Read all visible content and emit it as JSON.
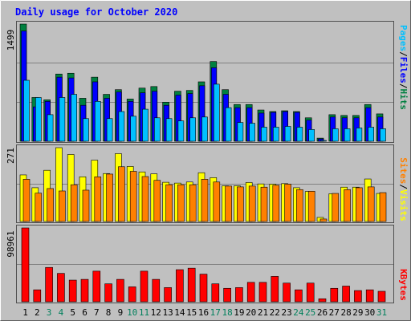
{
  "title": "Daily usage for October 2020",
  "colors": {
    "background": "#c0c0c0",
    "title": "#0000ff",
    "hits": "#008040",
    "files": "#0000ff",
    "pages": "#00c0ff",
    "visits": "#ffff00",
    "sites": "#ff8000",
    "kbytes": "#ff0000",
    "weekend_label": "#00805c"
  },
  "chart_data": [
    {
      "type": "bar",
      "panel": "hits_files_pages",
      "ylabel_max": "1499",
      "ylim": [
        0,
        1499
      ],
      "legend": [
        "Pages",
        "/",
        "Files",
        "/",
        "Hits"
      ],
      "categories": [
        "1",
        "2",
        "3",
        "4",
        "5",
        "6",
        "7",
        "8",
        "9",
        "10",
        "11",
        "12",
        "13",
        "14",
        "15",
        "16",
        "17",
        "18",
        "19",
        "20",
        "21",
        "22",
        "23",
        "24",
        "25",
        "26",
        "27",
        "28",
        "29",
        "30",
        "31"
      ],
      "weekend_days": [
        "3",
        "4",
        "10",
        "11",
        "17",
        "18",
        "24",
        "25",
        "31"
      ],
      "series": [
        {
          "name": "Hits",
          "values": [
            1499,
            560,
            530,
            860,
            870,
            550,
            820,
            600,
            660,
            540,
            680,
            700,
            500,
            640,
            650,
            760,
            1020,
            660,
            470,
            470,
            400,
            380,
            390,
            380,
            300,
            40,
            340,
            330,
            330,
            470,
            350
          ]
        },
        {
          "name": "Files",
          "values": [
            1410,
            440,
            510,
            820,
            810,
            460,
            760,
            550,
            630,
            510,
            620,
            640,
            460,
            590,
            610,
            710,
            940,
            600,
            430,
            430,
            360,
            370,
            380,
            370,
            270,
            30,
            310,
            300,
            300,
            430,
            310
          ]
        },
        {
          "name": "Pages",
          "values": [
            780,
            560,
            340,
            560,
            600,
            290,
            510,
            290,
            380,
            320,
            410,
            300,
            290,
            260,
            300,
            310,
            730,
            430,
            240,
            230,
            180,
            180,
            190,
            180,
            150,
            10,
            160,
            160,
            170,
            180,
            160
          ]
        }
      ]
    },
    {
      "type": "bar",
      "panel": "visits_sites",
      "ylabel_max": "271",
      "ylim": [
        0,
        271
      ],
      "legend": [
        "Sites",
        "/",
        "Visits"
      ],
      "categories": [
        "1",
        "2",
        "3",
        "4",
        "5",
        "6",
        "7",
        "8",
        "9",
        "10",
        "11",
        "12",
        "13",
        "14",
        "15",
        "16",
        "17",
        "18",
        "19",
        "20",
        "21",
        "22",
        "23",
        "24",
        "25",
        "26",
        "27",
        "28",
        "29",
        "30",
        "31"
      ],
      "series": [
        {
          "name": "Visits",
          "values": [
            171,
            124,
            188,
            271,
            246,
            164,
            225,
            176,
            249,
            202,
            182,
            175,
            144,
            141,
            145,
            179,
            161,
            131,
            131,
            143,
            138,
            137,
            139,
            124,
            110,
            15,
            102,
            126,
            126,
            156,
            103
          ]
        },
        {
          "name": "Sites",
          "values": [
            155,
            104,
            121,
            112,
            135,
            115,
            164,
            174,
            201,
            184,
            165,
            151,
            135,
            135,
            135,
            155,
            145,
            130,
            127,
            130,
            126,
            133,
            137,
            117,
            111,
            9,
            103,
            117,
            124,
            127,
            106
          ]
        }
      ]
    },
    {
      "type": "bar",
      "panel": "kbytes",
      "ylabel_max": "98961",
      "ylim": [
        0,
        98961
      ],
      "legend": [
        "KBytes"
      ],
      "categories": [
        "1",
        "2",
        "3",
        "4",
        "5",
        "6",
        "7",
        "8",
        "9",
        "10",
        "11",
        "12",
        "13",
        "14",
        "15",
        "16",
        "17",
        "18",
        "19",
        "20",
        "21",
        "22",
        "23",
        "24",
        "25",
        "26",
        "27",
        "28",
        "29",
        "30",
        "31"
      ],
      "series": [
        {
          "name": "KBytes",
          "values": [
            98961,
            16000,
            46000,
            38000,
            29000,
            30000,
            41000,
            24000,
            30000,
            20000,
            41000,
            30000,
            19000,
            43000,
            45000,
            37000,
            24000,
            18000,
            19000,
            26000,
            26000,
            34000,
            25000,
            16000,
            25000,
            4000,
            18000,
            21000,
            15000,
            16000,
            14000
          ]
        }
      ]
    }
  ]
}
